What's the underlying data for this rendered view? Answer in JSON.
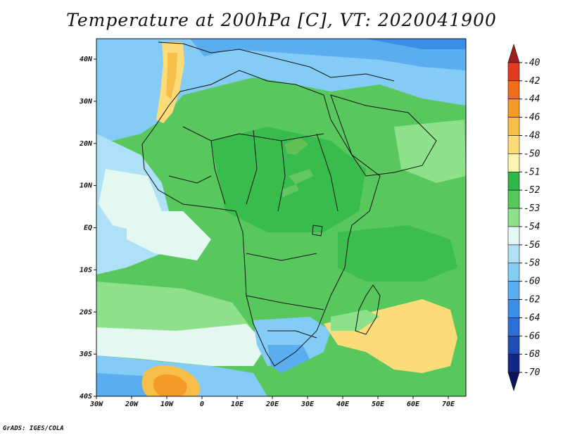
{
  "title": "Temperature at 200hPa [C], VT: 2020041900",
  "credit": "GrADS: IGES/COLA",
  "map": {
    "lon_labels": [
      "30W",
      "20W",
      "10W",
      "0",
      "10E",
      "20E",
      "30E",
      "40E",
      "50E",
      "60E",
      "70E"
    ],
    "lat_labels": [
      "40N",
      "30N",
      "20N",
      "10N",
      "EQ",
      "10S",
      "20S",
      "30S",
      "40S"
    ]
  },
  "colorbar": {
    "labels": [
      "-40",
      "-42",
      "-44",
      "-46",
      "-48",
      "-50",
      "-51",
      "-52",
      "-53",
      "-54",
      "-56",
      "-58",
      "-60",
      "-62",
      "-64",
      "-66",
      "-68",
      "-70"
    ],
    "colors": [
      "#a01e1e",
      "#e03c1c",
      "#f06e1a",
      "#f59a28",
      "#f8be4a",
      "#fbdc78",
      "#fbf4b0",
      "#2fb84a",
      "#56c95a",
      "#8ee08a",
      "#e2f8f0",
      "#aee0f8",
      "#84ccf6",
      "#5aaef0",
      "#3a8ee6",
      "#2a6ed8",
      "#1e4cb0",
      "#122886",
      "#0c1460"
    ]
  }
}
